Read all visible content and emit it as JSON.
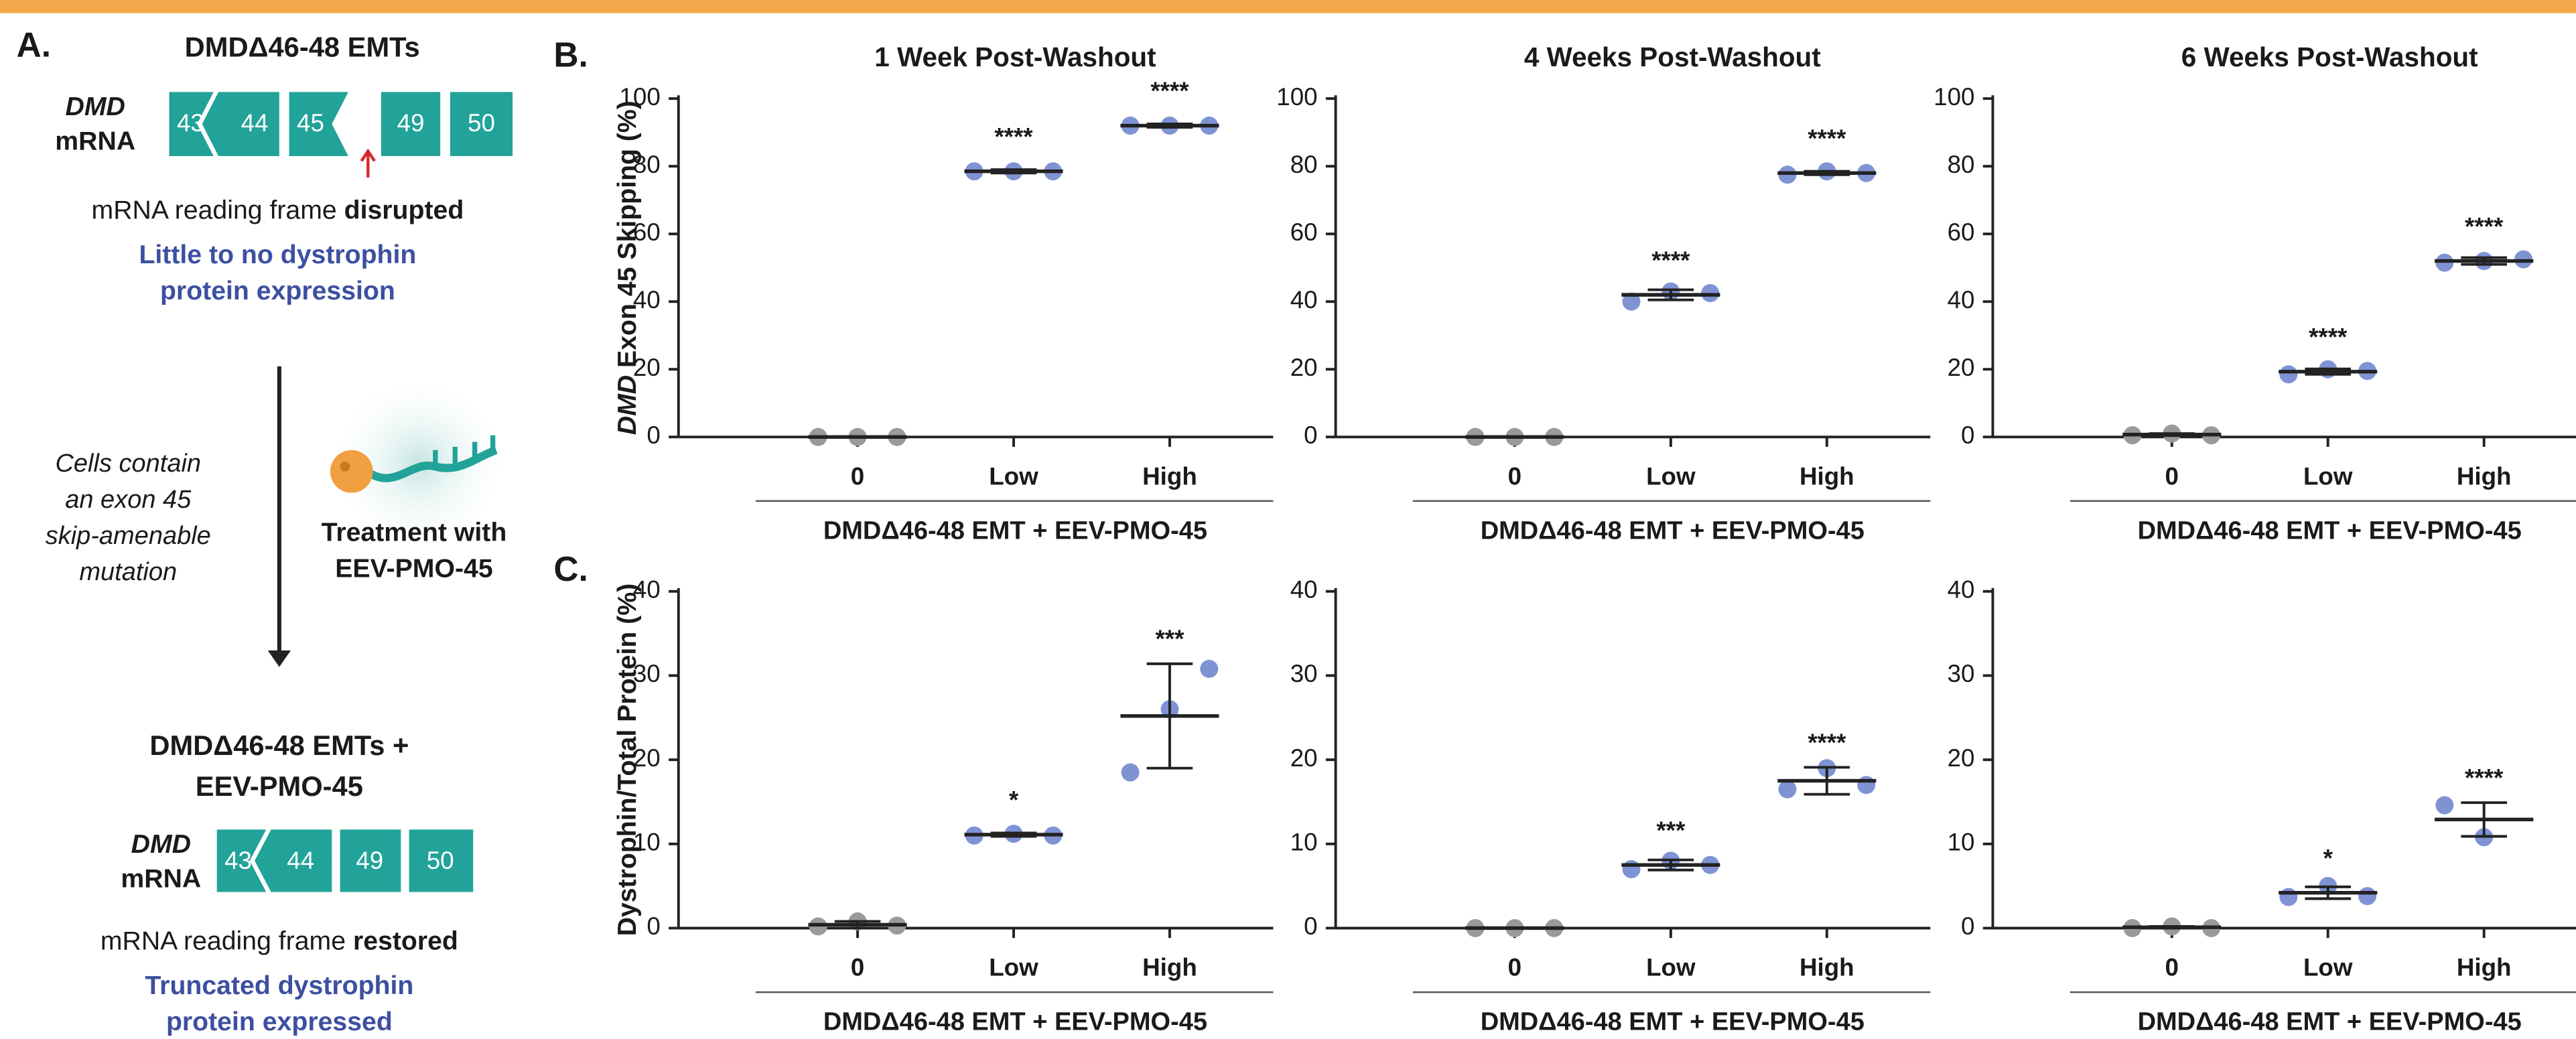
{
  "panel_a": {
    "label": "A.",
    "title": "DMDΔ46-48 EMTs",
    "gene": "DMD",
    "mrna": "mRNA",
    "exons_before": [
      "43",
      "44",
      "45",
      "49",
      "50"
    ],
    "frame_text": "mRNA reading frame",
    "frame_state_before": "disrupted",
    "outcome_before": [
      "Little to no dystrophin",
      "protein expression"
    ],
    "note": [
      "Cells contain",
      "an exon 45",
      "skip-amenable",
      "mutation"
    ],
    "treatment": [
      "Treatment with",
      "EEV-PMO-45"
    ],
    "title_after": [
      "DMDΔ46-48 EMTs +",
      "EEV-PMO-45"
    ],
    "exons_after": [
      "43",
      "44",
      "49",
      "50"
    ],
    "frame_state_after": "restored",
    "outcome_after": [
      "Truncated dystrophin",
      "protein expressed"
    ]
  },
  "panel_labels": [
    "B.",
    "C."
  ],
  "chart_data": [
    {
      "type": "dotplot",
      "title": "1 Week Post-Washout",
      "ylabel_prefix": "DMD",
      "ylabel": "Exon 45 Skipping (%)",
      "xlabel": "DMDΔ46-48 EMT + EEV-PMO-45",
      "categories": [
        "0",
        "Low",
        "High"
      ],
      "colors": [
        "#9a9a9a",
        "#7f93d4",
        "#7f93d4"
      ],
      "ylim": [
        0,
        100
      ],
      "yticks": [
        0,
        20,
        40,
        60,
        80,
        100
      ],
      "groups": [
        {
          "points": [
            0,
            0,
            0
          ],
          "mean": 0,
          "sd": 0,
          "sig": null
        },
        {
          "points": [
            78.5,
            78.5,
            78.5
          ],
          "mean": 78.5,
          "sd": 0.5,
          "sig": "****"
        },
        {
          "points": [
            92,
            92,
            92
          ],
          "mean": 92,
          "sd": 0.5,
          "sig": "****"
        }
      ]
    },
    {
      "type": "dotplot",
      "title": "4 Weeks Post-Washout",
      "xlabel": "DMDΔ46-48 EMT + EEV-PMO-45",
      "categories": [
        "0",
        "Low",
        "High"
      ],
      "colors": [
        "#9a9a9a",
        "#7f93d4",
        "#7f93d4"
      ],
      "ylim": [
        0,
        100
      ],
      "yticks": [
        0,
        20,
        40,
        60,
        80,
        100
      ],
      "groups": [
        {
          "points": [
            0,
            0,
            0
          ],
          "mean": 0,
          "sd": 0,
          "sig": null
        },
        {
          "points": [
            40,
            43,
            42.5
          ],
          "mean": 42,
          "sd": 1.5,
          "sig": "****"
        },
        {
          "points": [
            77.5,
            78.5,
            78
          ],
          "mean": 78,
          "sd": 0.5,
          "sig": "****"
        }
      ]
    },
    {
      "type": "dotplot",
      "title": "6 Weeks Post-Washout",
      "xlabel": "DMDΔ46-48 EMT + EEV-PMO-45",
      "categories": [
        "0",
        "Low",
        "High"
      ],
      "colors": [
        "#9a9a9a",
        "#7f93d4",
        "#7f93d4"
      ],
      "ylim": [
        0,
        100
      ],
      "yticks": [
        0,
        20,
        40,
        60,
        80,
        100
      ],
      "groups": [
        {
          "points": [
            0.5,
            1,
            0.5
          ],
          "mean": 0.7,
          "sd": 0.3,
          "sig": null
        },
        {
          "points": [
            18.5,
            20,
            19.5
          ],
          "mean": 19.3,
          "sd": 0.8,
          "sig": "****"
        },
        {
          "points": [
            51.5,
            52,
            52.5
          ],
          "mean": 52,
          "sd": 1,
          "sig": "****"
        }
      ]
    },
    {
      "type": "dotplot",
      "ylabel": "Dystrophin/Total Protein (%)",
      "xlabel": "DMDΔ46-48 EMT + EEV-PMO-45",
      "categories": [
        "0",
        "Low",
        "High"
      ],
      "colors": [
        "#9a9a9a",
        "#7f93d4",
        "#7f93d4"
      ],
      "ylim": [
        0,
        40
      ],
      "yticks": [
        0,
        10,
        20,
        30,
        40
      ],
      "groups": [
        {
          "points": [
            0.2,
            0.8,
            0.3
          ],
          "mean": 0.4,
          "sd": 0.4,
          "sig": null
        },
        {
          "points": [
            11,
            11.2,
            11
          ],
          "mean": 11.1,
          "sd": 0.2,
          "sig": "*"
        },
        {
          "points": [
            18.5,
            26,
            30.8
          ],
          "mean": 25.2,
          "sd": 6.2,
          "sig": "***"
        }
      ]
    },
    {
      "type": "dotplot",
      "xlabel": "DMDΔ46-48 EMT + EEV-PMO-45",
      "categories": [
        "0",
        "Low",
        "High"
      ],
      "colors": [
        "#9a9a9a",
        "#7f93d4",
        "#7f93d4"
      ],
      "ylim": [
        0,
        40
      ],
      "yticks": [
        0,
        10,
        20,
        30,
        40
      ],
      "groups": [
        {
          "points": [
            0,
            0,
            0
          ],
          "mean": 0,
          "sd": 0,
          "sig": null
        },
        {
          "points": [
            7,
            8,
            7.5
          ],
          "mean": 7.5,
          "sd": 0.6,
          "sig": "***"
        },
        {
          "points": [
            16.5,
            19,
            17
          ],
          "mean": 17.5,
          "sd": 1.6,
          "sig": "****"
        }
      ]
    },
    {
      "type": "dotplot",
      "xlabel": "DMDΔ46-48 EMT + EEV-PMO-45",
      "categories": [
        "0",
        "Low",
        "High"
      ],
      "colors": [
        "#9a9a9a",
        "#7f93d4",
        "#7f93d4"
      ],
      "ylim": [
        0,
        40
      ],
      "yticks": [
        0,
        10,
        20,
        30,
        40
      ],
      "groups": [
        {
          "points": [
            0,
            0.2,
            0
          ],
          "mean": 0.1,
          "sd": 0.1,
          "sig": null
        },
        {
          "points": [
            3.7,
            5,
            3.8
          ],
          "mean": 4.2,
          "sd": 0.7,
          "sig": "*"
        },
        {
          "points": [
            14.6,
            10.8
          ],
          "mean": 12.9,
          "sd": 2,
          "sig": "****"
        }
      ]
    }
  ]
}
